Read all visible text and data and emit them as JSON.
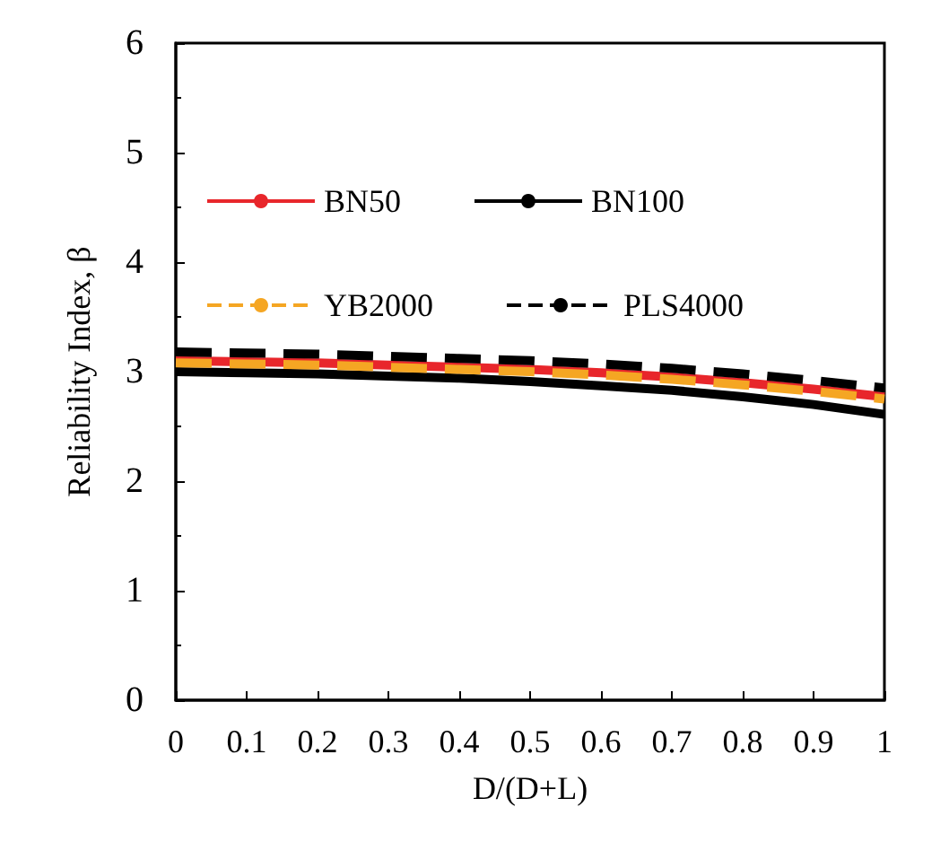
{
  "chart_data": {
    "type": "line",
    "xlabel": "D/(D+L)",
    "ylabel": "Reliability Index, β",
    "x": [
      0,
      0.1,
      0.2,
      0.3,
      0.4,
      0.5,
      0.6,
      0.7,
      0.8,
      0.9,
      1
    ],
    "xlim": [
      0,
      1
    ],
    "xticks": [
      0,
      0.1,
      0.2,
      0.3,
      0.4,
      0.5,
      0.6,
      0.7,
      0.8,
      0.9,
      1
    ],
    "ylim": [
      0,
      6
    ],
    "yticks": [
      0,
      1,
      2,
      3,
      4,
      5,
      6
    ],
    "grid": false,
    "legend": "top",
    "marker": "none",
    "series": [
      {
        "name": "BN50",
        "color": "#e8262b",
        "line_style": "solid",
        "values": [
          3.1,
          3.09,
          3.08,
          3.06,
          3.04,
          3.02,
          2.99,
          2.95,
          2.9,
          2.84,
          2.77
        ]
      },
      {
        "name": "BN100",
        "color": "#000000",
        "line_style": "solid",
        "values": [
          3.0,
          2.99,
          2.98,
          2.96,
          2.94,
          2.91,
          2.87,
          2.83,
          2.77,
          2.7,
          2.61
        ]
      },
      {
        "name": "YB2000",
        "color": "#f5a623",
        "line_style": "dashed",
        "values": [
          3.08,
          3.07,
          3.06,
          3.04,
          3.02,
          3.0,
          2.97,
          2.93,
          2.88,
          2.82,
          2.75
        ]
      },
      {
        "name": "PLS4000",
        "color": "#000000",
        "line_style": "dashed",
        "values": [
          3.18,
          3.17,
          3.16,
          3.14,
          3.12,
          3.1,
          3.07,
          3.03,
          2.98,
          2.92,
          2.85
        ]
      }
    ]
  }
}
